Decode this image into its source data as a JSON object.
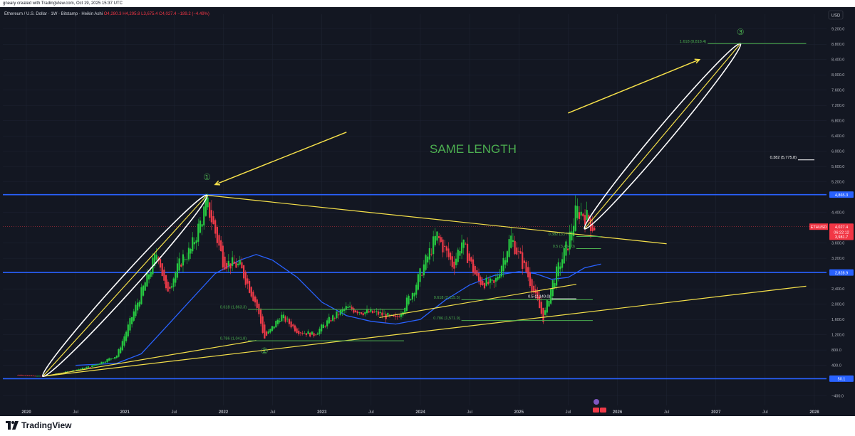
{
  "header": {
    "credit": "gneary created with TradingView.com, Oct 19, 2025 15:37 UTC"
  },
  "chart_data": {
    "type": "candlestick",
    "symbol_line": {
      "symbol": "Ethereum / U.S. Dollar · 1W · Bitstamp · Heikin Ashi",
      "open": "O4,280.3",
      "high": "H4,295.8",
      "low": "L3,675.4",
      "close": "C4,027.4",
      "change": "−189.2 (−4.49%)"
    },
    "currency": "USD",
    "y_ticks": [
      "9,200.0",
      "8,800.0",
      "8,400.0",
      "8,000.0",
      "7,600.0",
      "7,200.0",
      "6,800.0",
      "6,400.0",
      "6,000.0",
      "5,600.0",
      "5,200.0",
      "4,400.0",
      "3,600.0",
      "3,200.0",
      "2,400.0",
      "2,000.0",
      "1,600.0",
      "1,200.0",
      "800.0",
      "400.0",
      "−400.0"
    ],
    "ylim": [
      -650,
      9400
    ],
    "x_ticks": [
      {
        "label": "2020",
        "date": "2020-01"
      },
      {
        "label": "Jul",
        "date": "2020-07"
      },
      {
        "label": "2021",
        "date": "2021-01"
      },
      {
        "label": "Jul",
        "date": "2021-07"
      },
      {
        "label": "2022",
        "date": "2022-01"
      },
      {
        "label": "Jul",
        "date": "2022-07"
      },
      {
        "label": "2023",
        "date": "2023-01"
      },
      {
        "label": "Jul",
        "date": "2023-07"
      },
      {
        "label": "2024",
        "date": "2024-01"
      },
      {
        "label": "Jul",
        "date": "2024-07"
      },
      {
        "label": "2025",
        "date": "2025-01"
      },
      {
        "label": "Jul",
        "date": "2025-07"
      },
      {
        "label": "2026",
        "date": "2026-01"
      },
      {
        "label": "Jul",
        "date": "2026-07"
      },
      {
        "label": "2027",
        "date": "2027-01"
      },
      {
        "label": "Jul",
        "date": "2027-07"
      },
      {
        "label": "2028",
        "date": "2028-01"
      }
    ],
    "price_tags": [
      {
        "text": "4,865.3",
        "price": 4865,
        "color": "#2962ff"
      },
      {
        "text": "4,027.4",
        "price": 4027,
        "color": "#f23645"
      },
      {
        "text": "06:22:12",
        "price": 3890,
        "color": "#f23645"
      },
      {
        "text": "3,981.7",
        "price": 3760,
        "color": "#f23645"
      },
      {
        "text": "2,828.9",
        "price": 2829,
        "color": "#2962ff"
      },
      {
        "text": "50.1",
        "price": 50,
        "color": "#2962ff"
      }
    ],
    "eth_label": "ETHUSD",
    "horizontal_lines": [
      {
        "price": 4865,
        "color": "#2962ff"
      },
      {
        "price": 2829,
        "color": "#2962ff"
      },
      {
        "price": 50,
        "color": "#2962ff"
      }
    ],
    "fib_levels": [
      {
        "label": "1.618 (8,818.4)",
        "price": 8818,
        "from": "2026-12",
        "to": "2027-12",
        "color": "#4caf50"
      },
      {
        "label": "0.382 (5,775.8)",
        "price": 5776,
        "from": "2027-11",
        "to": "2028-01",
        "color": "#ffffff"
      },
      {
        "label": "0.382 (3,770.5)",
        "price": 3770,
        "from": "2025-08",
        "to": "2025-11",
        "color": "#4caf50"
      },
      {
        "label": "0.5 (3,454.0)",
        "price": 3454,
        "from": "2025-08",
        "to": "2025-11",
        "color": "#4caf50"
      },
      {
        "label": "0.5 (2,140.0)",
        "price": 2140,
        "from": "2025-05",
        "to": "2025-08",
        "color": "#ffffff"
      },
      {
        "label": "0.618 (2,115.5)",
        "price": 2116,
        "from": "2024-06",
        "to": "2025-10",
        "color": "#4caf50"
      },
      {
        "label": "0.786 (1,571.9)",
        "price": 1572,
        "from": "2024-06",
        "to": "2025-10",
        "color": "#4caf50"
      },
      {
        "label": "0.618 (1,863.3)",
        "price": 1863,
        "from": "2022-04",
        "to": "2023-11",
        "color": "#4caf50"
      },
      {
        "label": "0.786 (1,041.8)",
        "price": 1042,
        "from": "2022-04",
        "to": "2023-11",
        "color": "#4caf50"
      }
    ],
    "circle_labels": [
      {
        "text": "①",
        "date": "2021-11",
        "price": 5250
      },
      {
        "text": "②",
        "date": "2022-06",
        "price": 700
      },
      {
        "text": "③",
        "date": "2027-04",
        "price": 9050
      }
    ],
    "annotation": "SAME LENGTH",
    "price_path": [
      [
        "2019-12",
        150
      ],
      [
        "2020-03",
        110
      ],
      [
        "2020-06",
        230
      ],
      [
        "2020-09",
        380
      ],
      [
        "2020-12",
        650
      ],
      [
        "2021-02",
        1750
      ],
      [
        "2021-05",
        3400
      ],
      [
        "2021-06",
        2300
      ],
      [
        "2021-08",
        3200
      ],
      [
        "2021-09",
        3400
      ],
      [
        "2021-11",
        4650
      ],
      [
        "2022-01",
        3100
      ],
      [
        "2022-03",
        3000
      ],
      [
        "2022-05",
        2000
      ],
      [
        "2022-06",
        1100
      ],
      [
        "2022-08",
        1700
      ],
      [
        "2022-10",
        1300
      ],
      [
        "2022-12",
        1200
      ],
      [
        "2023-02",
        1600
      ],
      [
        "2023-04",
        1900
      ],
      [
        "2023-06",
        1800
      ],
      [
        "2023-08",
        1750
      ],
      [
        "2023-10",
        1600
      ],
      [
        "2023-12",
        2300
      ],
      [
        "2024-03",
        3800
      ],
      [
        "2024-05",
        3000
      ],
      [
        "2024-06",
        3650
      ],
      [
        "2024-08",
        2600
      ],
      [
        "2024-10",
        2500
      ],
      [
        "2024-12",
        3750
      ],
      [
        "2025-02",
        2800
      ],
      [
        "2025-04",
        1600
      ],
      [
        "2025-05",
        2500
      ],
      [
        "2025-07",
        3600
      ],
      [
        "2025-08",
        4450
      ],
      [
        "2025-09",
        4350
      ],
      [
        "2025-10",
        4027
      ]
    ],
    "ma_path": [
      [
        "2020-07",
        400
      ],
      [
        "2020-12",
        450
      ],
      [
        "2021-03",
        700
      ],
      [
        "2021-06",
        1400
      ],
      [
        "2021-09",
        2100
      ],
      [
        "2021-12",
        2800
      ],
      [
        "2022-03",
        3150
      ],
      [
        "2022-05",
        3300
      ],
      [
        "2022-07",
        3150
      ],
      [
        "2022-10",
        2700
      ],
      [
        "2023-01",
        2050
      ],
      [
        "2023-04",
        1700
      ],
      [
        "2023-07",
        1550
      ],
      [
        "2023-10",
        1480
      ],
      [
        "2024-01",
        1600
      ],
      [
        "2024-04",
        2100
      ],
      [
        "2024-07",
        2500
      ],
      [
        "2024-10",
        2750
      ],
      [
        "2025-01",
        2850
      ],
      [
        "2025-03",
        2800
      ],
      [
        "2025-05",
        2650
      ],
      [
        "2025-07",
        2700
      ],
      [
        "2025-09",
        2950
      ],
      [
        "2025-11",
        3050
      ]
    ],
    "trendlines": [
      {
        "from": [
          "2020-03",
          110
        ],
        "to": [
          "2021-11",
          4850
        ],
        "color": "#f5e04a"
      },
      {
        "from": [
          "2021-11",
          4850
        ],
        "to": [
          "2026-07",
          3580
        ],
        "color": "#f5e04a"
      },
      {
        "from": [
          "2020-03",
          110
        ],
        "to": [
          "2027-12",
          2470
        ],
        "color": "#f5e04a"
      },
      {
        "from": [
          "2020-03",
          110
        ],
        "to": [
          "2022-05",
          1050
        ],
        "color": "#f5e04a"
      },
      {
        "from": [
          "2023-08",
          1650
        ],
        "to": [
          "2025-08",
          2520
        ],
        "color": "#f5e04a"
      },
      {
        "from": [
          "2025-09",
          3970
        ],
        "to": [
          "2027-04",
          8818
        ],
        "color": "#f5e04a"
      }
    ],
    "arrows": [
      {
        "from": [
          "2023-04",
          6500
        ],
        "to": [
          "2021-12",
          5130
        ],
        "color": "#f5e04a"
      },
      {
        "from": [
          "2025-07",
          7000
        ],
        "to": [
          "2026-11",
          8400
        ],
        "color": "#f5e04a"
      }
    ],
    "ellipses": [
      {
        "from": [
          "2020-03",
          110
        ],
        "to": [
          "2021-11",
          4850
        ],
        "color": "#ffffff"
      },
      {
        "from": [
          "2025-09",
          3970
        ],
        "to": [
          "2027-04",
          8818
        ],
        "color": "#ffffff"
      }
    ]
  },
  "footer": {
    "brand": "TradingView"
  },
  "colors": {
    "background": "#131722",
    "up": "#26c940",
    "down": "#ef3a48",
    "grid": "#1f2433",
    "axis_text": "#b2b5be",
    "yellow": "#f5e04a",
    "blue": "#2962ff",
    "fib_green": "#4caf50"
  }
}
